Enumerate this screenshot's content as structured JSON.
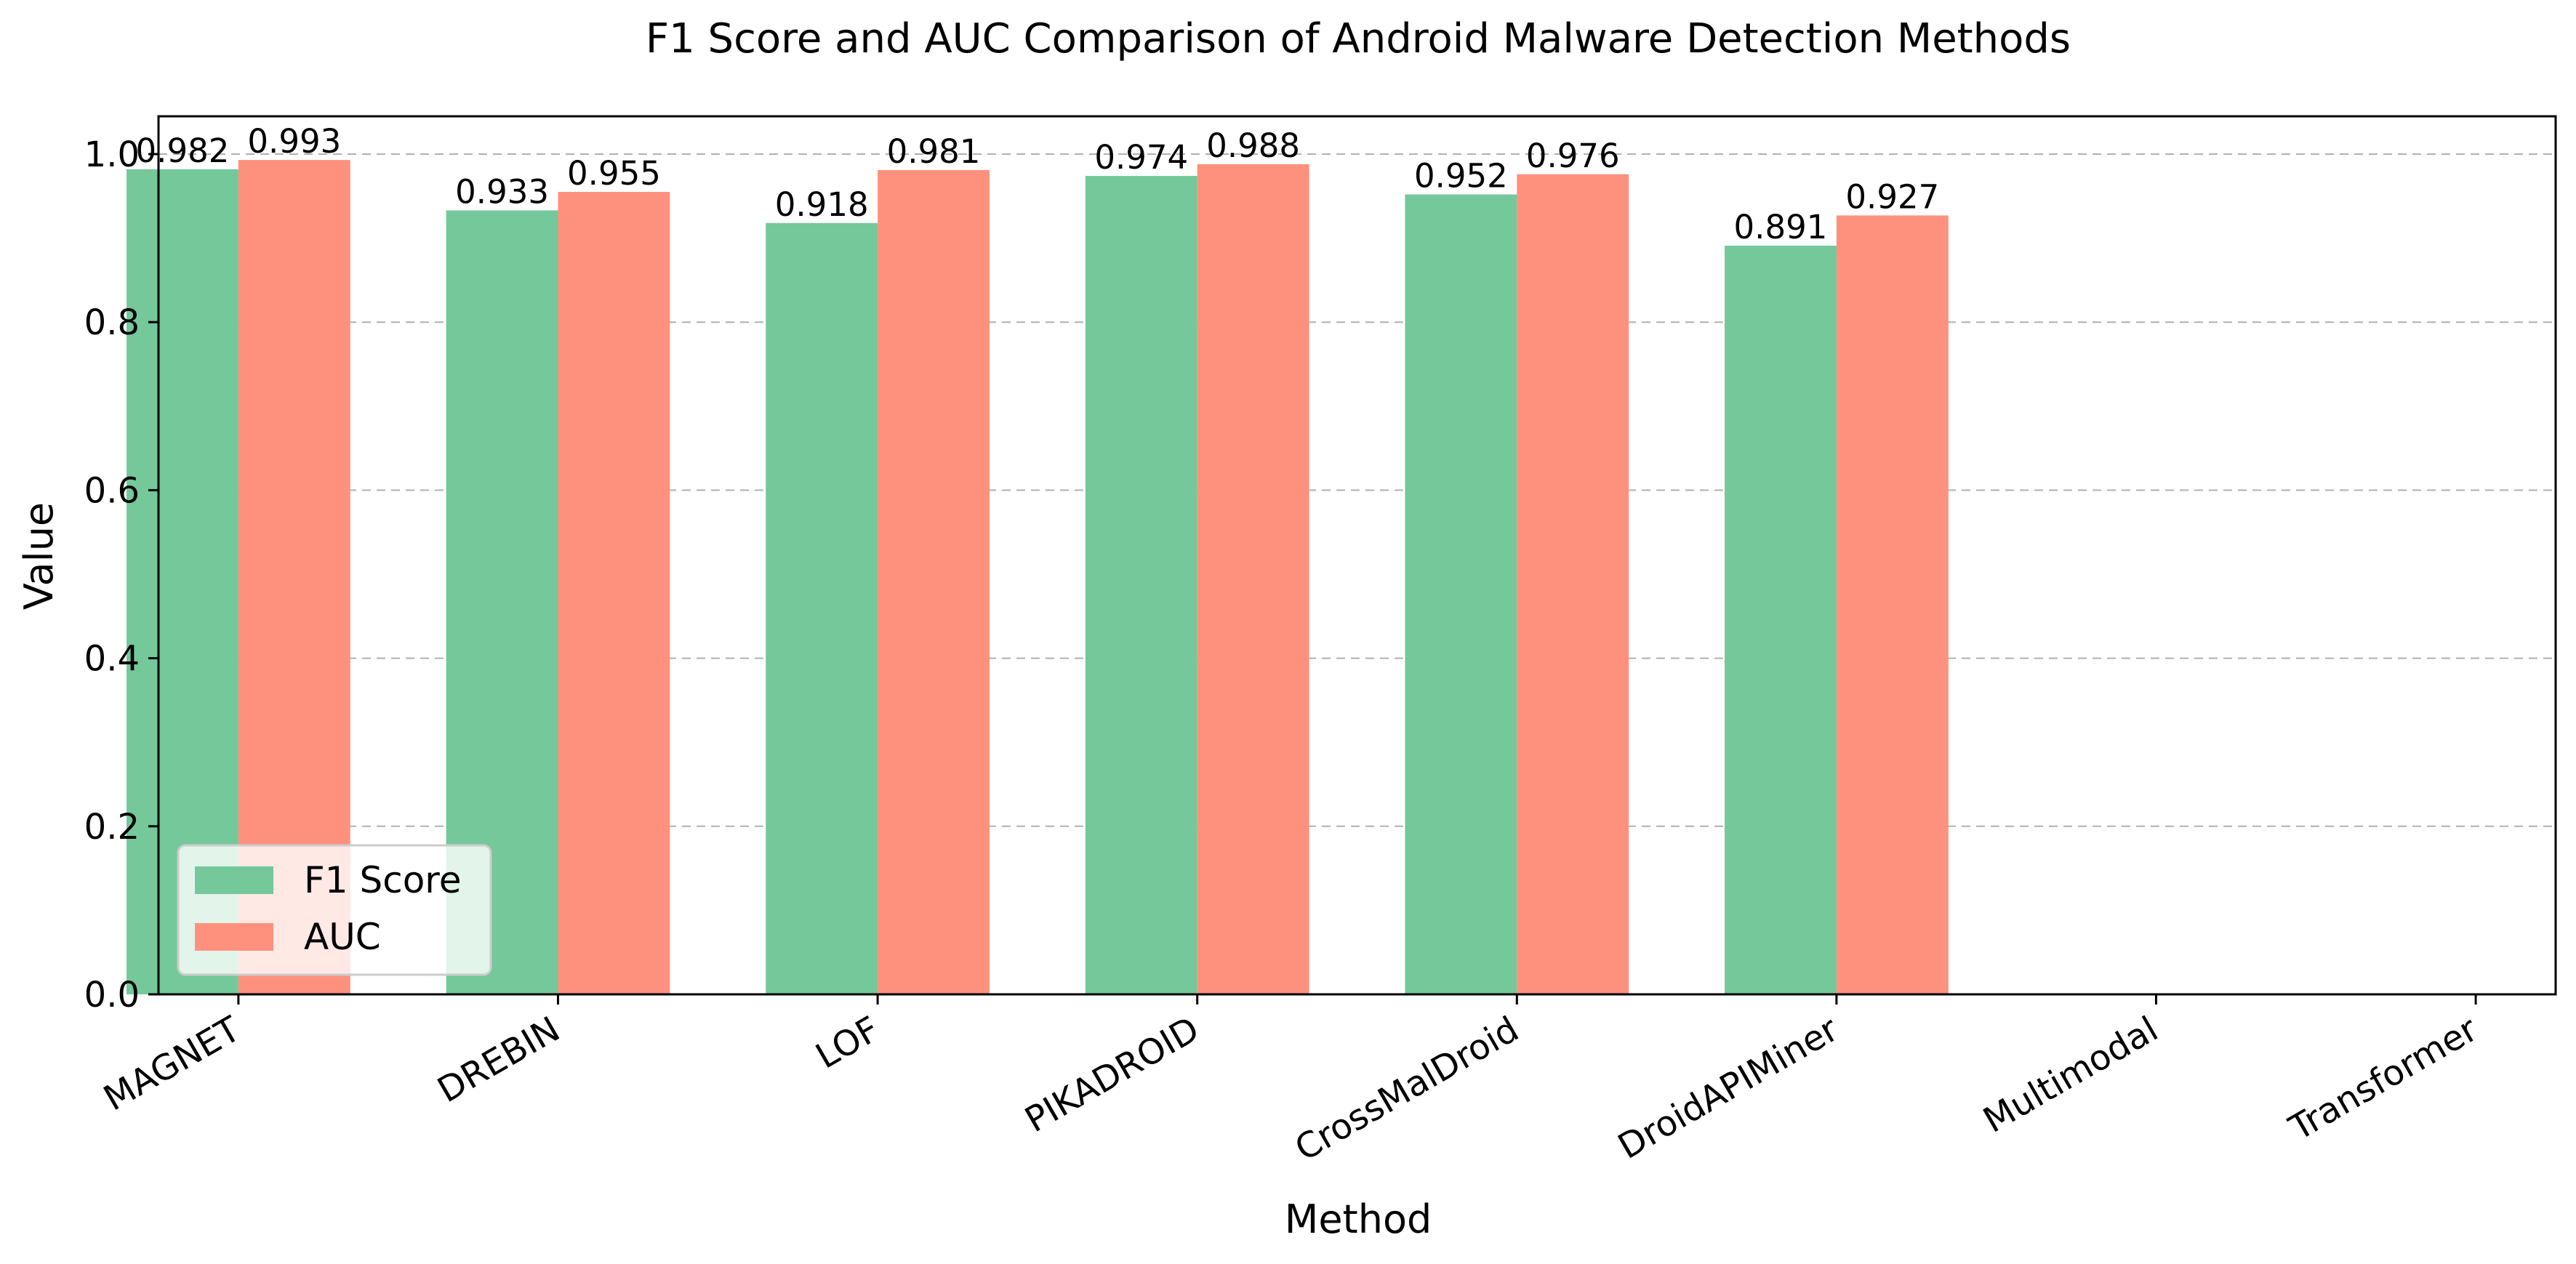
{
  "chart_data": {
    "type": "bar",
    "title": "F1 Score and AUC Comparison of Android Malware Detection Methods",
    "xlabel": "Method",
    "ylabel": "Value",
    "ylim": [
      0,
      1.045
    ],
    "yticks": [
      "0.0",
      "0.2",
      "0.4",
      "0.6",
      "0.8",
      "1.0"
    ],
    "grid": "y-dashed",
    "legend_position": "lower-left",
    "categories": [
      "MAGNET",
      "DREBIN",
      "LOF",
      "PIKADROID",
      "CrossMalDroid",
      "DroidAPIMiner",
      "Multimodal",
      "Transformer"
    ],
    "series": [
      {
        "name": "F1 Score",
        "color": "#74c89a",
        "values": [
          0.982,
          0.933,
          0.918,
          0.974,
          0.952,
          0.891,
          null,
          null
        ],
        "labels": [
          "0.982",
          "0.933",
          "0.918",
          "0.974",
          "0.952",
          "0.891",
          null,
          null
        ]
      },
      {
        "name": "AUC",
        "color": "#fe917d",
        "values": [
          0.993,
          0.955,
          0.981,
          0.988,
          0.976,
          0.927,
          null,
          null
        ],
        "labels": [
          "0.993",
          "0.955",
          "0.981",
          "0.988",
          "0.976",
          "0.927",
          null,
          null
        ]
      }
    ]
  }
}
